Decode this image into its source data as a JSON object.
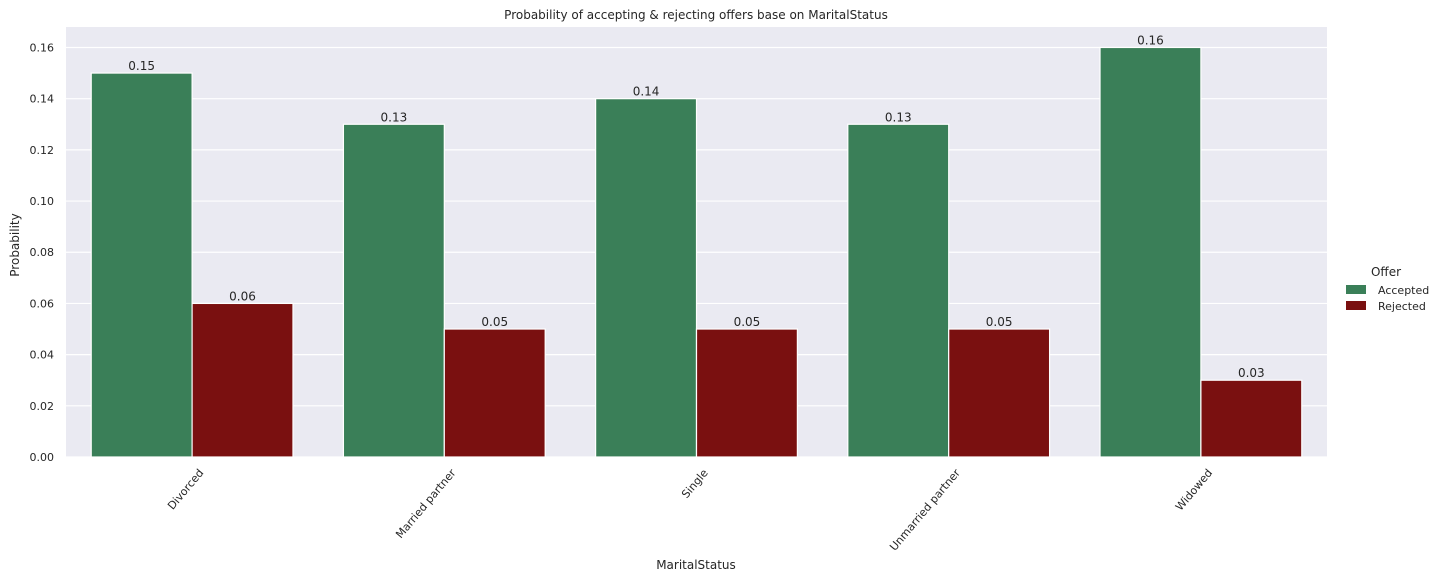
{
  "chart_data": {
    "type": "bar",
    "title": "Probability of accepting & rejecting offers base on MaritalStatus",
    "xlabel": "MaritalStatus",
    "ylabel": "Probability",
    "categories": [
      "Divorced",
      "Married partner",
      "Single",
      "Unmarried partner",
      "Widowed"
    ],
    "series": [
      {
        "name": "Accepted",
        "color": "#3a7f58",
        "values": [
          0.15,
          0.13,
          0.14,
          0.13,
          0.16
        ]
      },
      {
        "name": "Rejected",
        "color": "#7a1010",
        "values": [
          0.06,
          0.05,
          0.05,
          0.05,
          0.03
        ]
      }
    ],
    "ylim": [
      0,
      0.168
    ],
    "yticks": [
      "0.00",
      "0.02",
      "0.04",
      "0.06",
      "0.08",
      "0.10",
      "0.12",
      "0.14",
      "0.16"
    ],
    "legend": {
      "title": "Offer",
      "position": "right"
    },
    "grid": true,
    "background": "#eaeaf2"
  }
}
